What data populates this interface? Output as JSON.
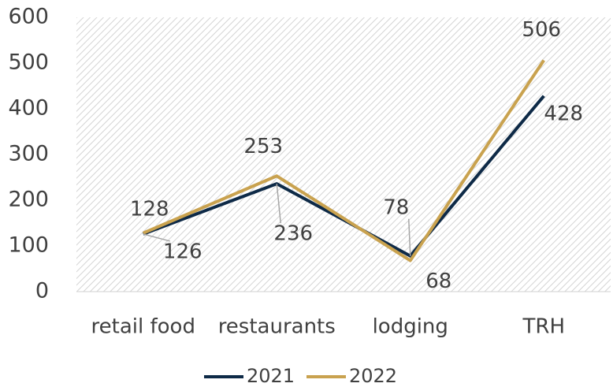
{
  "chart_data": {
    "type": "line",
    "categories": [
      "retail food",
      "restaurants",
      "lodging",
      "TRH"
    ],
    "series": [
      {
        "name": "2021",
        "color": "#0e2a47",
        "values": [
          126,
          236,
          78,
          428
        ]
      },
      {
        "name": "2022",
        "color": "#c9a24f",
        "values": [
          128,
          253,
          68,
          506
        ]
      }
    ],
    "ylim": [
      0,
      600
    ],
    "yticks": [
      0,
      100,
      200,
      300,
      400,
      500,
      600
    ],
    "legend": "bottom"
  }
}
